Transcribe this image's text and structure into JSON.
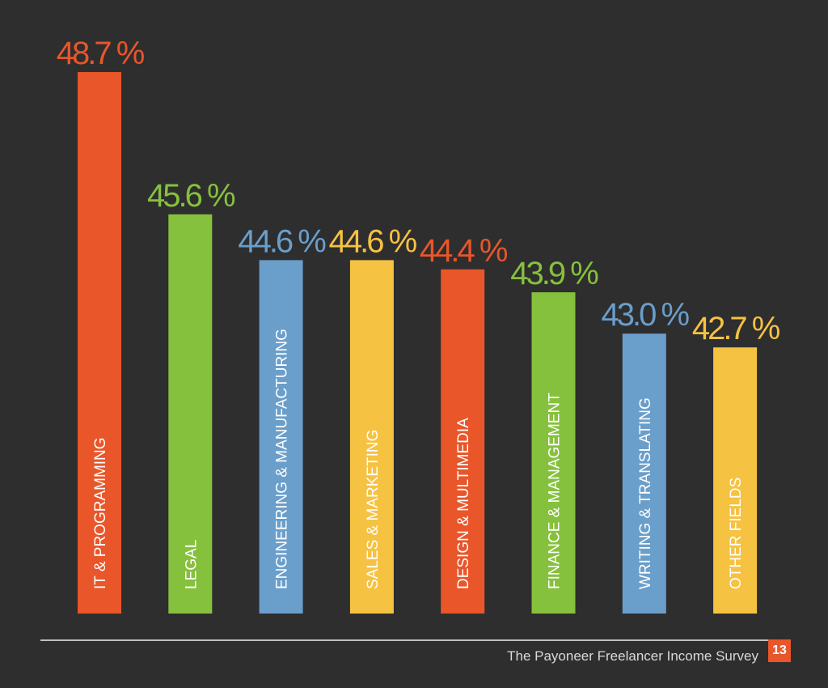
{
  "chart_data": {
    "type": "bar",
    "categories": [
      "IT & PROGRAMMING",
      "LEGAL",
      "ENGINEERING & MANUFACTURING",
      "SALES & MARKETING",
      "DESIGN & MULTIMEDIA",
      "FINANCE & MANAGEMENT",
      "WRITING & TRANSLATING",
      "OTHER FIELDS"
    ],
    "values": [
      48.7,
      45.6,
      44.6,
      44.6,
      44.4,
      43.9,
      43.0,
      42.7
    ],
    "value_labels": [
      "48.7 %",
      "45.6 %",
      "44.6 %",
      "44.6 %",
      "44.4 %",
      "43.9 %",
      "43.0 %",
      "42.7 %"
    ],
    "colors": [
      "#e8562a",
      "#86c13d",
      "#6a9ecb",
      "#f5c242",
      "#e8562a",
      "#86c13d",
      "#6a9ecb",
      "#f5c242"
    ],
    "ylim": [
      36.9,
      48.7
    ],
    "grid": false,
    "title": "",
    "xlabel": "",
    "ylabel": ""
  },
  "footer": {
    "source": "The Payoneer Freelancer Income Survey",
    "page_number": "13"
  }
}
